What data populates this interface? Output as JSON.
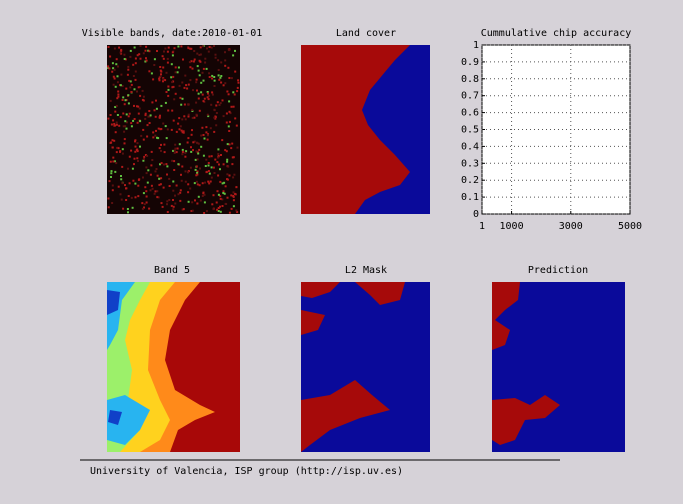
{
  "panels": [
    {
      "title": "Visible bands, date:2010-01-01"
    },
    {
      "title": "Land cover"
    },
    {
      "title": "Band 5"
    },
    {
      "title": "L2 Mask"
    },
    {
      "title": "Prediction"
    }
  ],
  "accuracy_axes": {
    "title": "Cummulative chip accuracy",
    "xlim": [
      1,
      5000
    ],
    "ylim": [
      0,
      1
    ],
    "xticks": [
      1,
      1000,
      3000,
      5000
    ],
    "yticks": [
      0,
      0.1,
      0.2,
      0.3,
      0.4,
      0.5,
      0.6,
      0.7,
      0.8,
      0.9,
      1
    ],
    "grid": true
  },
  "footer": "University of Valencia, ISP group (http://isp.uv.es)"
}
